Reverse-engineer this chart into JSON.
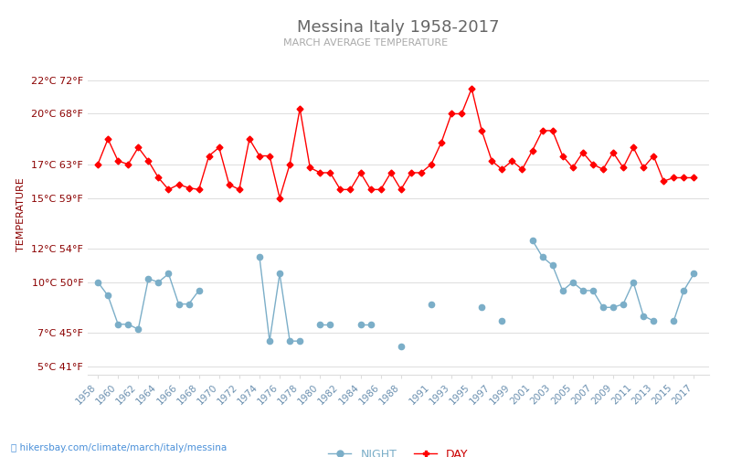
{
  "title": "Messina Italy 1958-2017",
  "subtitle": "MARCH AVERAGE TEMPERATURE",
  "ylabel": "TEMPERATURE",
  "ylabel_color": "#8B0000",
  "title_color": "#666666",
  "subtitle_color": "#aaaaaa",
  "background_color": "#ffffff",
  "grid_color": "#dddddd",
  "years": [
    1958,
    1959,
    1960,
    1961,
    1962,
    1963,
    1964,
    1965,
    1966,
    1967,
    1968,
    1969,
    1970,
    1971,
    1972,
    1973,
    1974,
    1975,
    1976,
    1977,
    1978,
    1979,
    1980,
    1981,
    1982,
    1983,
    1984,
    1985,
    1986,
    1987,
    1988,
    1989,
    1990,
    1991,
    1992,
    1993,
    1994,
    1995,
    1996,
    1997,
    1998,
    1999,
    2000,
    2001,
    2002,
    2003,
    2004,
    2005,
    2006,
    2007,
    2008,
    2009,
    2010,
    2011,
    2012,
    2013,
    2014,
    2015,
    2016,
    2017
  ],
  "day_temps": [
    17.0,
    18.5,
    17.2,
    17.0,
    18.0,
    17.2,
    16.2,
    15.5,
    15.8,
    15.6,
    15.5,
    17.5,
    18.0,
    15.8,
    15.5,
    18.5,
    17.5,
    17.5,
    15.0,
    17.0,
    20.3,
    16.8,
    16.5,
    16.5,
    15.5,
    15.5,
    16.5,
    15.5,
    15.5,
    16.5,
    15.5,
    16.5,
    16.5,
    17.0,
    18.3,
    20.0,
    20.0,
    21.5,
    19.0,
    17.2,
    16.7,
    17.2,
    16.7,
    17.8,
    19.0,
    19.0,
    17.5,
    16.8,
    17.7,
    17.0,
    16.7,
    17.7,
    16.8,
    18.0,
    16.8,
    17.5,
    16.0,
    16.2,
    16.2,
    16.2
  ],
  "night_temps": [
    10.0,
    9.2,
    7.5,
    7.5,
    7.2,
    10.2,
    10.0,
    10.5,
    8.7,
    8.7,
    9.5,
    null,
    null,
    null,
    null,
    null,
    11.5,
    6.5,
    10.5,
    6.5,
    6.5,
    null,
    7.5,
    7.5,
    null,
    null,
    7.5,
    7.5,
    null,
    null,
    6.2,
    null,
    null,
    8.7,
    null,
    null,
    null,
    null,
    8.5,
    null,
    7.7,
    null,
    null,
    12.5,
    11.5,
    11.0,
    9.5,
    10.0,
    9.5,
    9.5,
    8.5,
    8.5,
    8.7,
    10.0,
    8.0,
    7.7,
    null,
    7.7,
    9.5,
    10.5
  ],
  "day_color": "#ff0000",
  "night_color": "#7baec8",
  "yticks_c": [
    5,
    7,
    10,
    12,
    15,
    17,
    20,
    22
  ],
  "yticks_f": [
    41,
    45,
    50,
    54,
    59,
    63,
    68,
    72
  ],
  "ylim": [
    4.5,
    23.5
  ],
  "xlim_min": 1957.0,
  "xlim_max": 2018.5,
  "xtick_years": [
    1958,
    1960,
    1962,
    1964,
    1966,
    1968,
    1970,
    1972,
    1974,
    1976,
    1978,
    1980,
    1982,
    1984,
    1986,
    1988,
    1991,
    1993,
    1995,
    1997,
    1999,
    2001,
    2003,
    2005,
    2007,
    2009,
    2011,
    2013,
    2015,
    2017
  ],
  "footer_text": "hikersbay.com/climate/march/italy/messina",
  "footer_color": "#4a90d9",
  "legend_night": "NIGHT",
  "legend_day": "DAY"
}
